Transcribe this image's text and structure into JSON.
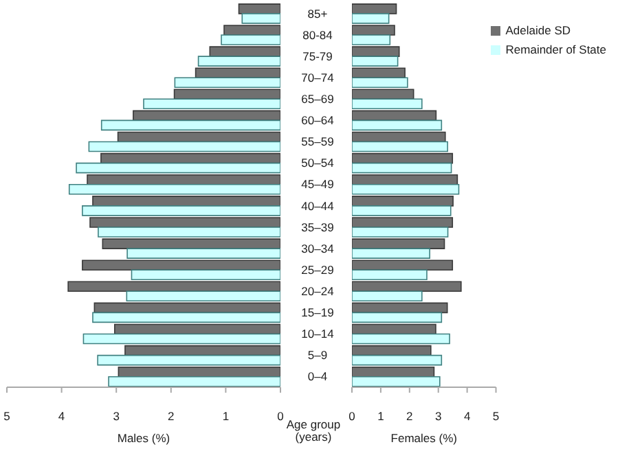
{
  "chart_data": [
    {
      "type": "bar",
      "orientation": "horizontal",
      "xlabel": "Males (%)",
      "categories": [
        "85+",
        "80-84",
        "75-79",
        "70–74",
        "65–69",
        "60–64",
        "55–59",
        "50–54",
        "45–49",
        "40–44",
        "35–39",
        "30–34",
        "25–29",
        "20–24",
        "15–19",
        "10–14",
        "5–9",
        "0–4"
      ],
      "series": [
        {
          "color": "#707070",
          "values": [
            0.76,
            1.03,
            1.29,
            1.55,
            1.94,
            2.69,
            2.97,
            3.28,
            3.53,
            3.43,
            3.48,
            3.25,
            3.62,
            3.88,
            3.4,
            3.03,
            2.84,
            2.96
          ]
        },
        {
          "color": "#ccffff",
          "values": [
            0.7,
            1.08,
            1.5,
            1.93,
            2.5,
            3.27,
            3.5,
            3.73,
            3.86,
            3.62,
            3.33,
            2.8,
            2.72,
            2.81,
            3.43,
            3.6,
            3.34,
            3.14
          ]
        }
      ],
      "xlim": [
        5,
        0
      ],
      "xticks": [
        5,
        4,
        3,
        2,
        1,
        0
      ],
      "legend": false,
      "grid": false
    },
    {
      "type": "bar",
      "orientation": "horizontal",
      "xlabel": "Females (%)",
      "ylabel": "Age group (years)",
      "categories": [
        null,
        null,
        null,
        null,
        null,
        null,
        null,
        null,
        null,
        null,
        null,
        null,
        null,
        null,
        null,
        null,
        null,
        null
      ],
      "series": [
        {
          "name": "Adelaide SD",
          "color": "#707070",
          "values": [
            1.54,
            1.48,
            1.64,
            1.84,
            2.14,
            2.92,
            3.24,
            3.49,
            3.66,
            3.51,
            3.49,
            3.21,
            3.49,
            3.79,
            3.31,
            2.91,
            2.74,
            2.85
          ]
        },
        {
          "name": "Remainder of State",
          "color": "#ccffff",
          "values": [
            1.28,
            1.32,
            1.59,
            1.93,
            2.43,
            3.11,
            3.32,
            3.45,
            3.71,
            3.43,
            3.33,
            2.7,
            2.6,
            2.43,
            3.11,
            3.39,
            3.11,
            3.05
          ]
        }
      ],
      "xlim": [
        0,
        5
      ],
      "xticks": [
        0,
        1,
        2,
        3,
        4,
        5
      ],
      "tick_labels": "x",
      "legend": "top right",
      "grid": false
    }
  ]
}
